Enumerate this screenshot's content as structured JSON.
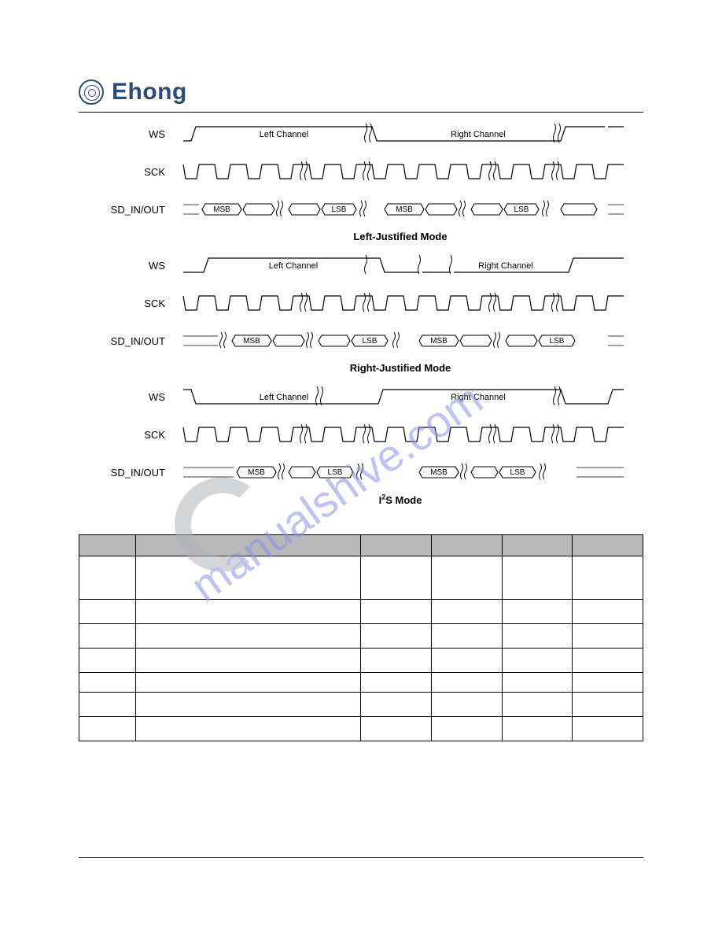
{
  "brand": {
    "name": "Ehong",
    "logo_color": "#2c4a7a"
  },
  "timing": {
    "groups": [
      {
        "mode_title": "Left-Justified Mode",
        "ws": {
          "label": "WS",
          "left_text": "Left Channel",
          "right_text": "Right Channel",
          "type": "ws_lj"
        },
        "sck": {
          "label": "SCK",
          "type": "sck"
        },
        "sd": {
          "label": "SD_IN/OUT",
          "bits": [
            "MSB",
            "",
            "LSB",
            "MSB",
            "",
            "LSB"
          ],
          "type": "sd_lj"
        }
      },
      {
        "mode_title": "Right-Justified Mode",
        "ws": {
          "label": "WS",
          "left_text": "Left Channel",
          "right_text": "Right Channel",
          "type": "ws_rj"
        },
        "sck": {
          "label": "SCK",
          "type": "sck"
        },
        "sd": {
          "label": "SD_IN/OUT",
          "bits": [
            "MSB",
            "",
            "LSB",
            "MSB",
            "",
            "LSB"
          ],
          "type": "sd_rj"
        }
      },
      {
        "mode_title": "I²S Mode",
        "ws": {
          "label": "WS",
          "left_text": "Left Channel",
          "right_text": "Right Channel",
          "type": "ws_i2s"
        },
        "sck": {
          "label": "SCK",
          "type": "sck"
        },
        "sd": {
          "label": "SD_IN/OUT",
          "bits": [
            "MSB",
            "",
            "LSB",
            "MSB",
            "",
            "LSB"
          ],
          "type": "sd_i2s"
        }
      }
    ]
  },
  "table": {
    "columns": 6,
    "column_widths_pct": [
      10,
      40,
      12.5,
      12.5,
      12.5,
      12.5
    ],
    "header_rows": 1,
    "body_rows": [
      {
        "height": "tall"
      },
      {
        "height": "normal"
      },
      {
        "height": "normal"
      },
      {
        "height": "normal"
      },
      {
        "height": "short"
      },
      {
        "height": "normal"
      },
      {
        "height": "normal"
      }
    ],
    "header_bg": "#b8b8b8",
    "border_color": "#000000"
  },
  "watermark": {
    "text": "manualshive.com",
    "ring_text": "",
    "text_color": "#8a8fe6",
    "ring_color": "#9aa0a6",
    "rotation_deg": -35,
    "fontsize": 44,
    "opacity": 0.55
  },
  "colors": {
    "background": "#ffffff",
    "text": "#000000",
    "rule_bottom": "#1a4b8c",
    "signal_stroke": "#000000"
  }
}
